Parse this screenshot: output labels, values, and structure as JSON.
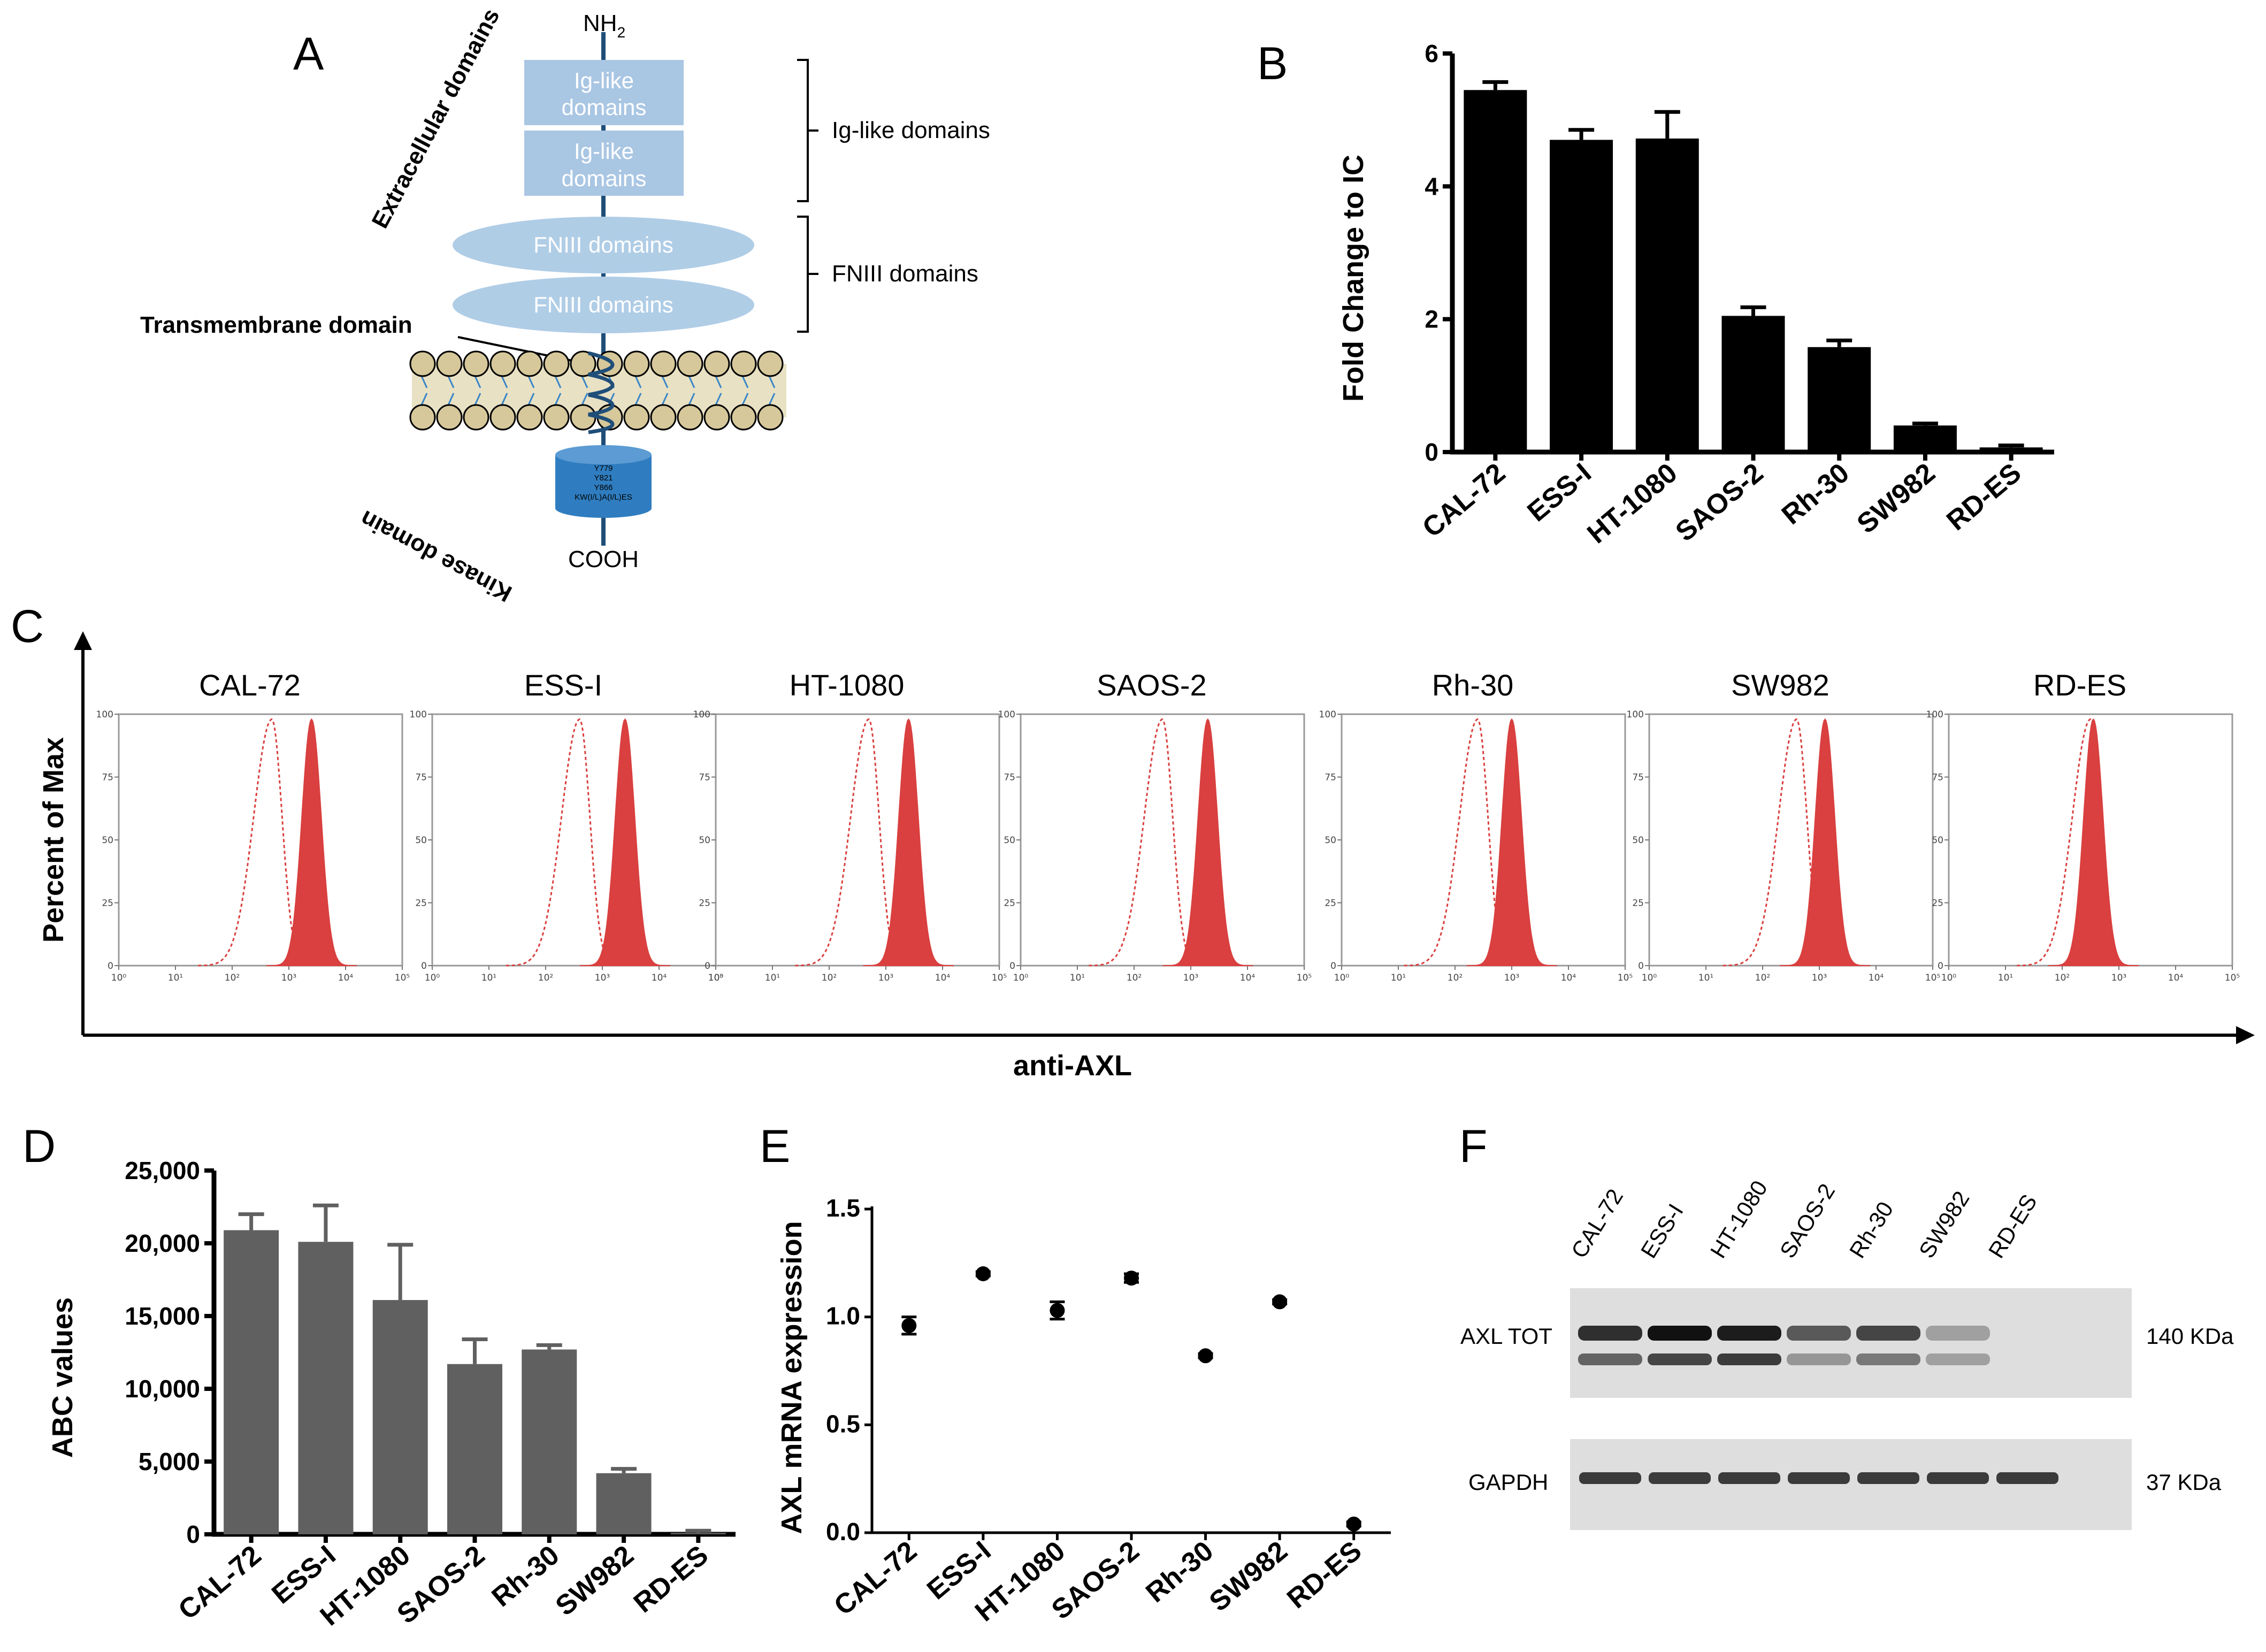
{
  "panels": {
    "A": "A",
    "B": "B",
    "C": "C",
    "D": "D",
    "E": "E",
    "F": "F"
  },
  "diagram_a": {
    "nh2": "NH",
    "nh2_sub": "2",
    "cooh": "COOH",
    "extracellular": "Extracellular domains",
    "kinase": "Kinase domain",
    "ig_domain_line1": "Ig-like",
    "ig_domain_line2": "domains",
    "fn_domain": "FNIII domains",
    "ig_bracket": "Ig-like domains",
    "fn_bracket": "FNIII domains",
    "transmembrane": "Transmembrane domain",
    "kinase_sites": [
      "Y779",
      "Y821",
      "Y866",
      "KW(I/L)A(I/L)ES"
    ],
    "colors": {
      "ig": "#a9c6e3",
      "fn": "#b0cde6",
      "kinase": "#2f7dc0",
      "axis": "#1f4e79",
      "lipid": "#d6c89a",
      "tail": "#3a86c8"
    }
  },
  "chart_data": [
    {
      "id": "B",
      "type": "bar",
      "categories": [
        "CAL-72",
        "ESS-I",
        "HT-1080",
        "SAOS-2",
        "Rh-30",
        "SW982",
        "RD-ES"
      ],
      "values": [
        5.45,
        4.7,
        4.72,
        2.05,
        1.58,
        0.4,
        0.07
      ],
      "errors": [
        0.12,
        0.15,
        0.4,
        0.13,
        0.1,
        0.03,
        0.03
      ],
      "ylabel": "Fold Change to IC",
      "ylim": [
        0,
        6
      ],
      "yticks": [
        "0",
        "2",
        "4",
        "6"
      ],
      "ytick_values": [
        0,
        2,
        4,
        6
      ],
      "color": "#000000"
    },
    {
      "id": "C",
      "type": "histogram",
      "samples": [
        "CAL-72",
        "ESS-I",
        "HT-1080",
        "SAOS-2",
        "Rh-30",
        "SW982",
        "RD-ES"
      ],
      "ylabel": "Percent of Max",
      "xlabel": "anti-AXL",
      "yticks": [
        "0",
        "25",
        "50",
        "75",
        "100"
      ],
      "ytick_values": [
        0,
        25,
        50,
        75,
        100
      ],
      "xticks": [
        "10⁰",
        "10¹",
        "10²",
        "10³",
        "10⁴",
        "10⁵"
      ],
      "isotype_peak_log10": [
        2.7,
        2.6,
        2.7,
        2.5,
        2.4,
        2.6,
        2.5
      ],
      "stained_peak_log10": [
        3.4,
        3.4,
        3.4,
        3.3,
        3.0,
        3.1,
        2.55
      ],
      "color": "#d9403f"
    },
    {
      "id": "D",
      "type": "bar",
      "categories": [
        "CAL-72",
        "ESS-I",
        "HT-1080",
        "SAOS-2",
        "Rh-30",
        "SW982",
        "RD-ES"
      ],
      "values": [
        20900,
        20100,
        16100,
        11700,
        12700,
        4200,
        100
      ],
      "errors": [
        1100,
        2500,
        3800,
        1700,
        300,
        300,
        150
      ],
      "ylabel": "ABC values",
      "ylim": [
        0,
        25000
      ],
      "yticks": [
        "0",
        "5,000",
        "10,000",
        "15,000",
        "20,000",
        "25,000"
      ],
      "ytick_values": [
        0,
        5000,
        10000,
        15000,
        20000,
        25000
      ],
      "color": "#606060"
    },
    {
      "id": "E",
      "type": "scatter",
      "categories": [
        "CAL-72",
        "ESS-I",
        "HT-1080",
        "SAOS-2",
        "Rh-30",
        "SW982",
        "RD-ES"
      ],
      "values": [
        0.96,
        1.2,
        1.03,
        1.18,
        0.82,
        1.07,
        0.04
      ],
      "errors": [
        0.04,
        0.01,
        0.04,
        0.02,
        0.01,
        0.01,
        0.01
      ],
      "ylabel": "AXL mRNA expression",
      "ylim": [
        0,
        1.5
      ],
      "yticks": [
        "0.0",
        "0.5",
        "1.0",
        "1.5"
      ],
      "ytick_values": [
        0,
        0.5,
        1.0,
        1.5
      ]
    }
  ],
  "western_blot": {
    "lanes": [
      "CAL-72",
      "ESS-I",
      "HT-1080",
      "SAOS-2",
      "Rh-30",
      "SW982",
      "RD-ES"
    ],
    "rows": [
      {
        "label": "AXL TOT",
        "size": "140 KDa"
      },
      {
        "label": "GAPDH",
        "size": "37 KDa"
      }
    ]
  }
}
